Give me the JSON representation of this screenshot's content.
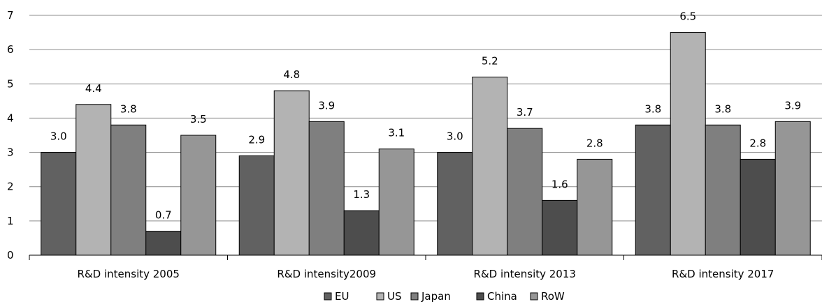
{
  "chart_data": {
    "type": "bar",
    "categories": [
      "R&D intensity 2005",
      "R&D intensity2009",
      "R&D intensity 2013",
      "R&D intensity 2017"
    ],
    "series": [
      {
        "name": "EU",
        "values": [
          3.0,
          2.9,
          3.0,
          3.8
        ],
        "labels": [
          "3.0",
          "2.9",
          "3.0",
          "3.8"
        ],
        "color": "#616161"
      },
      {
        "name": "US",
        "values": [
          4.4,
          4.8,
          5.2,
          6.5
        ],
        "labels": [
          "4.4",
          "4.8",
          "5.2",
          "6.5"
        ],
        "color": "#b3b3b3"
      },
      {
        "name": "Japan",
        "values": [
          3.8,
          3.9,
          3.7,
          3.8
        ],
        "labels": [
          "3.8",
          "3.9",
          "3.7",
          "3.8"
        ],
        "color": "#7f7f7f"
      },
      {
        "name": "China",
        "values": [
          0.7,
          1.3,
          1.6,
          2.8
        ],
        "labels": [
          "0.7",
          "1.3",
          "1.6",
          "2.8"
        ],
        "color": "#4d4d4d"
      },
      {
        "name": "RoW",
        "values": [
          3.5,
          3.1,
          2.8,
          3.9
        ],
        "labels": [
          "3.5",
          "3.1",
          "2.8",
          "3.9"
        ],
        "color": "#969696"
      }
    ],
    "y_ticks": [
      "0",
      "1",
      "2",
      "3",
      "4",
      "5",
      "6",
      "7"
    ],
    "ylim": [
      0,
      7
    ],
    "grid": true,
    "legend_position": "bottom",
    "title": "",
    "xlabel": "",
    "ylabel": ""
  }
}
